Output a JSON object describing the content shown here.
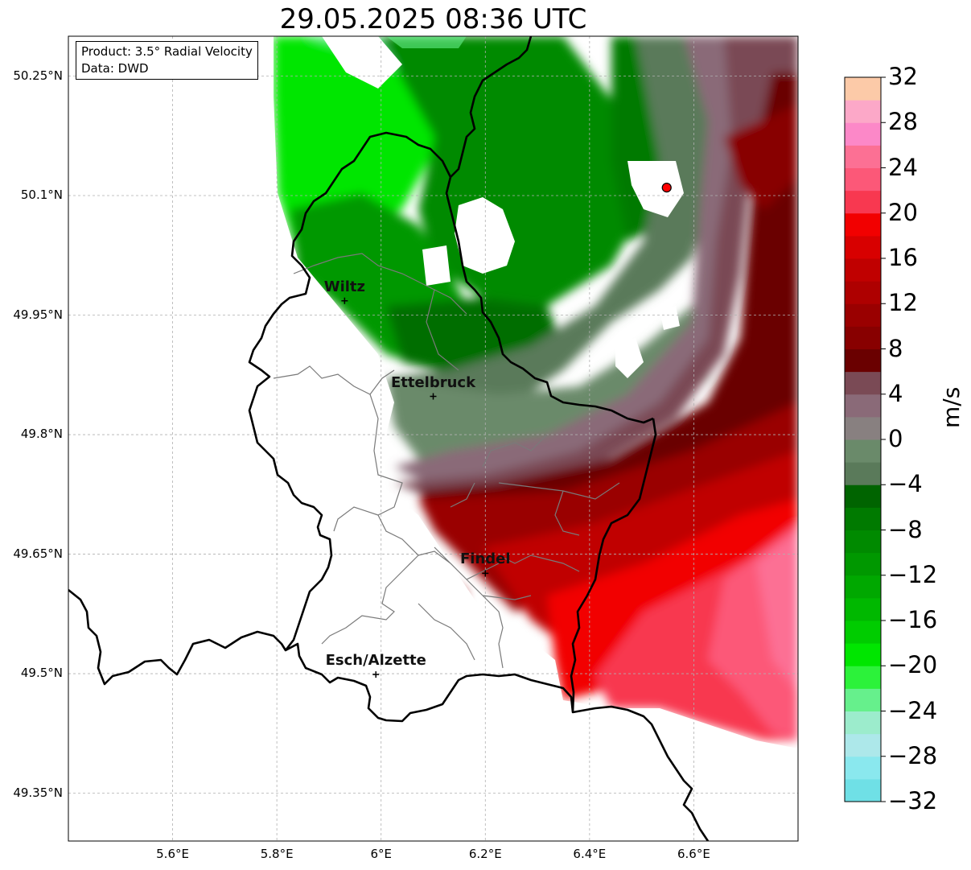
{
  "title": "29.05.2025 08:36 UTC",
  "info": {
    "product": "Product: 3.5° Radial Velocity",
    "source": "Data: DWD"
  },
  "map": {
    "lon_range": [
      5.4,
      6.8
    ],
    "lat_range": [
      49.29,
      50.3
    ],
    "x_ticks": [
      {
        "value": 5.6,
        "label": "5.6°E"
      },
      {
        "value": 5.8,
        "label": "5.8°E"
      },
      {
        "value": 6.0,
        "label": "6°E"
      },
      {
        "value": 6.2,
        "label": "6.2°E"
      },
      {
        "value": 6.4,
        "label": "6.4°E"
      },
      {
        "value": 6.6,
        "label": "6.6°E"
      }
    ],
    "y_ticks": [
      {
        "value": 50.25,
        "label": "50.25°N"
      },
      {
        "value": 50.1,
        "label": "50.1°N"
      },
      {
        "value": 49.95,
        "label": "49.95°N"
      },
      {
        "value": 49.8,
        "label": "49.8°N"
      },
      {
        "value": 49.65,
        "label": "49.65°N"
      },
      {
        "value": 49.5,
        "label": "49.5°N"
      },
      {
        "value": 49.35,
        "label": "49.35°N"
      }
    ],
    "gridlines": true,
    "cities": [
      {
        "name": "Wiltz",
        "lon": 5.93,
        "lat": 49.968
      },
      {
        "name": "Ettelbruck",
        "lon": 6.1,
        "lat": 49.848
      },
      {
        "name": "Findel",
        "lon": 6.2,
        "lat": 49.626
      },
      {
        "name": "Esch/Alzette",
        "lon": 5.99,
        "lat": 49.499
      }
    ],
    "radar_site": {
      "lon": 6.548,
      "lat": 50.11,
      "color": "#ff0000"
    }
  },
  "colorbar": {
    "label": "m/s",
    "min": -32,
    "max": 32,
    "ticks": [
      "32",
      "28",
      "24",
      "20",
      "16",
      "12",
      "8",
      "4",
      "0",
      "−4",
      "−8",
      "−12",
      "−16",
      "−20",
      "−24",
      "−28",
      "−32"
    ],
    "colors": [
      "#6fe0e6",
      "#8ae8ee",
      "#ade8ea",
      "#9ceccc",
      "#66f08c",
      "#2cf23a",
      "#00e600",
      "#00cc00",
      "#00b800",
      "#00a800",
      "#009800",
      "#008a00",
      "#007a00",
      "#006400",
      "#5a7a5a",
      "#6a8a6a",
      "#888080",
      "#8a6a78",
      "#7a4a55",
      "#6a0000",
      "#880000",
      "#9a0000",
      "#ae0000",
      "#c00000",
      "#d80000",
      "#f20000",
      "#f83850",
      "#fc5878",
      "#fc7094",
      "#fc88c8",
      "#fca8c8",
      "#fccaa8"
    ]
  }
}
